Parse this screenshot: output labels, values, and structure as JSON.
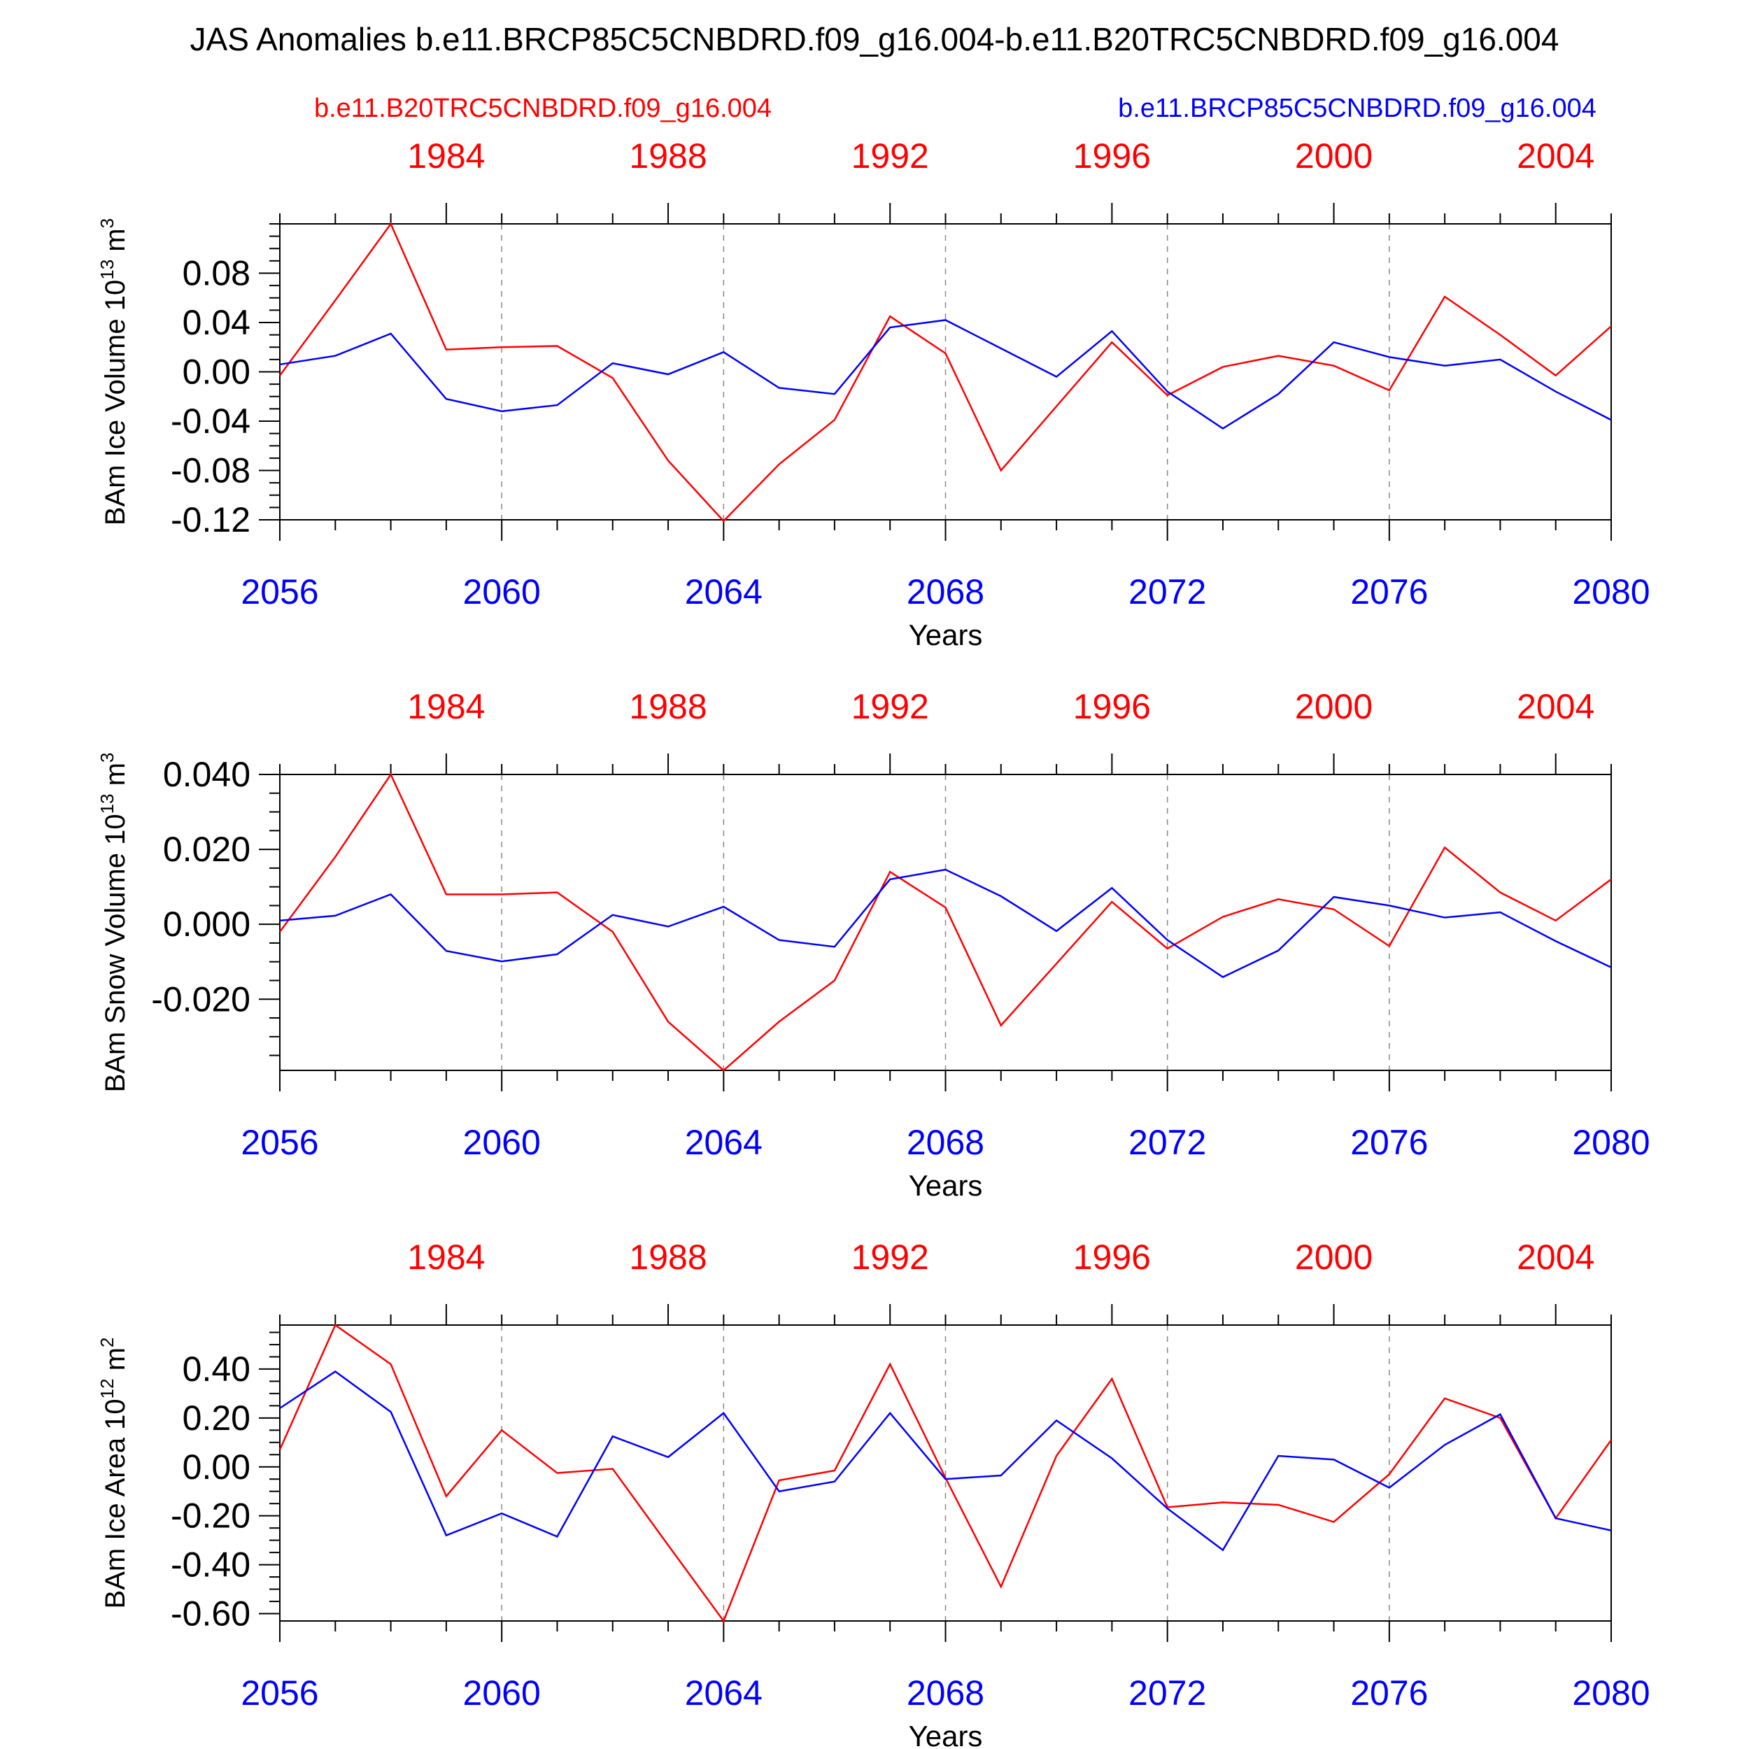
{
  "title": "JAS Anomalies b.e11.BRCP85C5CNBDRD.f09_g16.004-b.e11.B20TRC5CNBDRD.f09_g16.004",
  "legend": {
    "red_label": "b.e11.B20TRC5CNBDRD.f09_g16.004",
    "blue_label": "b.e11.BRCP85C5CNBDRD.f09_g16.004"
  },
  "colors": {
    "red": "#ff0000",
    "blue": "#0000ff",
    "axis": "#000000",
    "grid": "#888888"
  },
  "chart_data": [
    {
      "type": "line",
      "ylabel_main": "BAm Ice Volume 10",
      "ylabel_exp": "13",
      "ylabel_unit": " m",
      "ylabel_unit_exp": "3",
      "xlabel": "Years",
      "x": [
        2056,
        2057,
        2058,
        2059,
        2060,
        2061,
        2062,
        2063,
        2064,
        2065,
        2066,
        2067,
        2068,
        2069,
        2070,
        2071,
        2072,
        2073,
        2074,
        2075,
        2076,
        2077,
        2078,
        2079,
        2080
      ],
      "xlim": [
        2056,
        2080
      ],
      "bottom_ticks": [
        "2056",
        "2060",
        "2064",
        "2068",
        "2072",
        "2076",
        "2080"
      ],
      "top_ticks": [
        "1984",
        "1988",
        "1992",
        "1996",
        "2000",
        "2004"
      ],
      "ylim": [
        -0.12,
        0.12
      ],
      "y_ticks": [
        0.08,
        0.04,
        0.0,
        -0.04,
        -0.08,
        -0.12
      ],
      "y_tick_labels": [
        "0.08",
        "0.04",
        "0.00",
        "-0.04",
        "-0.08",
        "-0.12"
      ],
      "series": [
        {
          "name": "b.e11.B20TRC5CNBDRD.f09_g16.004",
          "color": "red",
          "values": [
            -0.003,
            0.058,
            0.12,
            0.018,
            0.02,
            0.021,
            -0.005,
            -0.072,
            -0.121,
            -0.075,
            -0.039,
            0.045,
            0.015,
            -0.08,
            -0.028,
            0.024,
            -0.019,
            0.004,
            0.013,
            0.005,
            -0.015,
            0.061,
            0.03,
            -0.003,
            0.037
          ]
        },
        {
          "name": "b.e11.BRCP85C5CNBDRD.f09_g16.004",
          "color": "blue",
          "values": [
            0.006,
            0.013,
            0.031,
            -0.022,
            -0.032,
            -0.027,
            0.007,
            -0.002,
            0.016,
            -0.013,
            -0.018,
            0.036,
            0.042,
            0.019,
            -0.004,
            0.033,
            -0.016,
            -0.046,
            -0.018,
            0.024,
            0.012,
            0.005,
            0.01,
            -0.016,
            -0.039
          ]
        }
      ]
    },
    {
      "type": "line",
      "ylabel_main": "BAm Snow Volume 10",
      "ylabel_exp": "13",
      "ylabel_unit": " m",
      "ylabel_unit_exp": "3",
      "xlabel": "Years",
      "x": [
        2056,
        2057,
        2058,
        2059,
        2060,
        2061,
        2062,
        2063,
        2064,
        2065,
        2066,
        2067,
        2068,
        2069,
        2070,
        2071,
        2072,
        2073,
        2074,
        2075,
        2076,
        2077,
        2078,
        2079,
        2080
      ],
      "xlim": [
        2056,
        2080
      ],
      "bottom_ticks": [
        "2056",
        "2060",
        "2064",
        "2068",
        "2072",
        "2076",
        "2080"
      ],
      "top_ticks": [
        "1984",
        "1988",
        "1992",
        "1996",
        "2000",
        "2004"
      ],
      "ylim": [
        -0.039,
        0.04
      ],
      "y_ticks": [
        0.04,
        0.02,
        0.0,
        -0.02
      ],
      "y_tick_labels": [
        "0.040",
        "0.020",
        "0.000",
        "-0.020"
      ],
      "series": [
        {
          "name": "b.e11.B20TRC5CNBDRD.f09_g16.004",
          "color": "red",
          "values": [
            -0.002,
            0.018,
            0.04,
            0.008,
            0.008,
            0.0085,
            -0.002,
            -0.026,
            -0.039,
            -0.026,
            -0.015,
            0.014,
            0.0045,
            -0.027,
            -0.0105,
            0.006,
            -0.0065,
            0.002,
            0.0067,
            0.004,
            -0.0058,
            0.0205,
            0.0085,
            0.001,
            0.012
          ]
        },
        {
          "name": "b.e11.BRCP85C5CNBDRD.f09_g16.004",
          "color": "blue",
          "values": [
            0.001,
            0.0023,
            0.008,
            -0.0071,
            -0.0099,
            -0.008,
            0.0025,
            -0.0006,
            0.0047,
            -0.0042,
            -0.006,
            0.012,
            0.0146,
            0.0075,
            -0.0018,
            0.0097,
            -0.0042,
            -0.0141,
            -0.007,
            0.0073,
            0.005,
            0.0018,
            0.0032,
            -0.0045,
            -0.0115
          ]
        }
      ]
    },
    {
      "type": "line",
      "ylabel_main": "BAm Ice Area 10",
      "ylabel_exp": "12",
      "ylabel_unit": " m",
      "ylabel_unit_exp": "2",
      "xlabel": "Years",
      "x": [
        2056,
        2057,
        2058,
        2059,
        2060,
        2061,
        2062,
        2063,
        2064,
        2065,
        2066,
        2067,
        2068,
        2069,
        2070,
        2071,
        2072,
        2073,
        2074,
        2075,
        2076,
        2077,
        2078,
        2079,
        2080
      ],
      "xlim": [
        2056,
        2080
      ],
      "bottom_ticks": [
        "2056",
        "2060",
        "2064",
        "2068",
        "2072",
        "2076",
        "2080"
      ],
      "top_ticks": [
        "1984",
        "1988",
        "1992",
        "1996",
        "2000",
        "2004"
      ],
      "ylim": [
        -0.63,
        0.58
      ],
      "y_ticks": [
        0.4,
        0.2,
        0.0,
        -0.2,
        -0.4,
        -0.6
      ],
      "y_tick_labels": [
        "0.40",
        "0.20",
        "0.00",
        "-0.20",
        "-0.40",
        "-0.60"
      ],
      "series": [
        {
          "name": "b.e11.B20TRC5CNBDRD.f09_g16.004",
          "color": "red",
          "values": [
            0.07,
            0.58,
            0.42,
            -0.12,
            0.15,
            -0.025,
            -0.008,
            -0.32,
            -0.63,
            -0.055,
            -0.015,
            0.42,
            -0.045,
            -0.49,
            0.045,
            0.36,
            -0.165,
            -0.145,
            -0.155,
            -0.225,
            -0.03,
            0.28,
            0.2,
            -0.21,
            0.11
          ]
        },
        {
          "name": "b.e11.BRCP85C5CNBDRD.f09_g16.004",
          "color": "blue",
          "values": [
            0.24,
            0.39,
            0.225,
            -0.28,
            -0.19,
            -0.285,
            0.125,
            0.04,
            0.22,
            -0.1,
            -0.06,
            0.22,
            -0.05,
            -0.035,
            0.19,
            0.035,
            -0.17,
            -0.34,
            0.045,
            0.03,
            -0.085,
            0.09,
            0.215,
            -0.21,
            -0.26
          ]
        }
      ]
    }
  ]
}
